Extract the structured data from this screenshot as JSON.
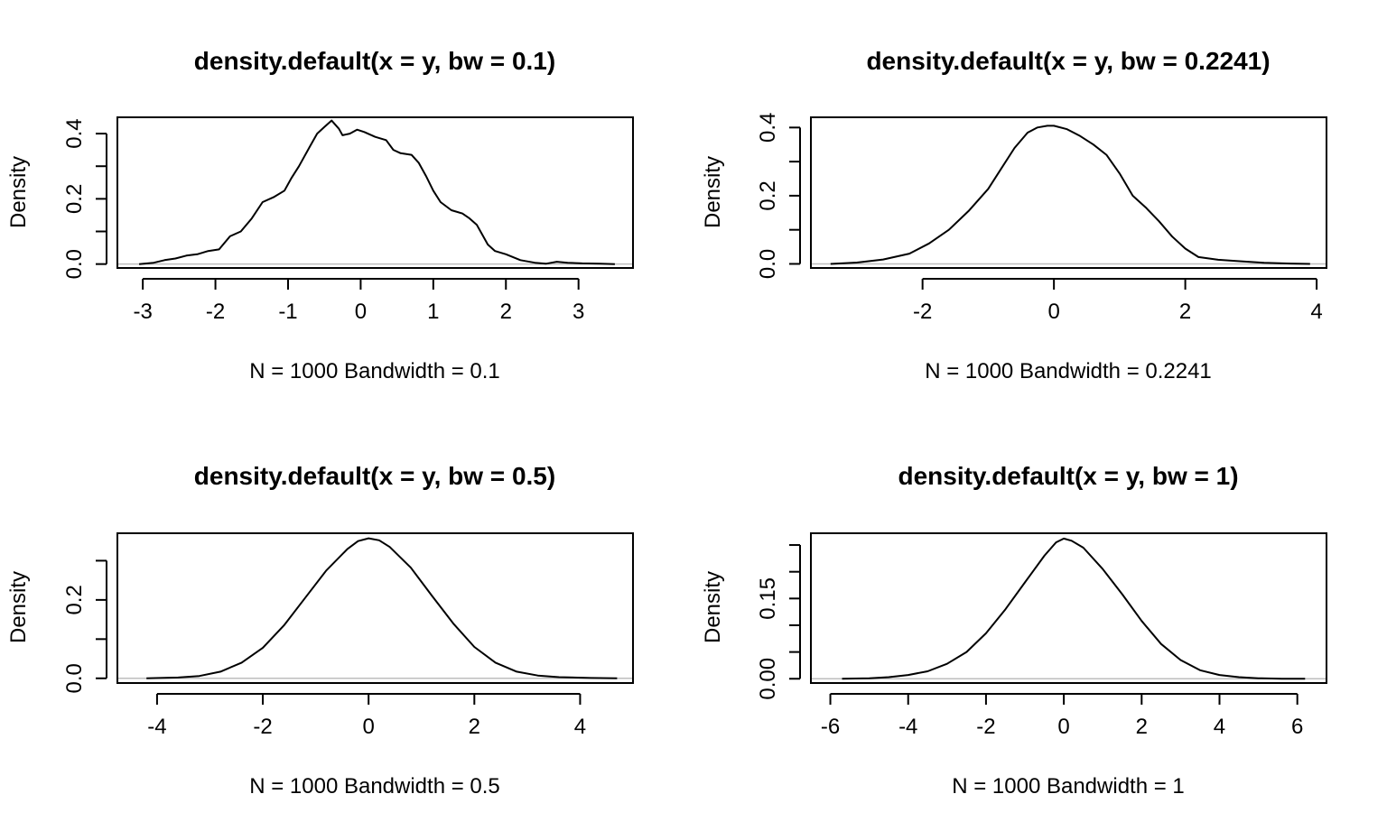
{
  "chart_data": [
    {
      "type": "line",
      "title": "density.default(x = y, bw = 0.1)",
      "xlabel": "N = 1000   Bandwidth = 0.1",
      "ylabel": "Density",
      "xlim": [
        -3.35,
        3.75
      ],
      "ylim": [
        -0.012,
        0.45
      ],
      "xticks": [
        -3,
        -2,
        -1,
        0,
        1,
        2,
        3
      ],
      "yticks": [
        0.0,
        0.2,
        0.4
      ],
      "yticks_minor": [
        0.1,
        0.3
      ],
      "ytick_labels": [
        "0.0",
        "0.2",
        "0.4"
      ],
      "x": [
        -3.05,
        -2.85,
        -2.7,
        -2.55,
        -2.4,
        -2.25,
        -2.1,
        -1.95,
        -1.8,
        -1.65,
        -1.5,
        -1.35,
        -1.2,
        -1.05,
        -0.95,
        -0.85,
        -0.7,
        -0.6,
        -0.5,
        -0.4,
        -0.3,
        -0.25,
        -0.15,
        -0.05,
        0.05,
        0.2,
        0.35,
        0.45,
        0.55,
        0.7,
        0.8,
        0.9,
        1.0,
        1.1,
        1.25,
        1.4,
        1.5,
        1.6,
        1.75,
        1.85,
        2.0,
        2.2,
        2.4,
        2.55,
        2.7,
        2.85,
        3.05,
        3.3,
        3.5
      ],
      "y": [
        0.0,
        0.004,
        0.012,
        0.017,
        0.026,
        0.03,
        0.04,
        0.045,
        0.085,
        0.1,
        0.14,
        0.19,
        0.205,
        0.225,
        0.265,
        0.3,
        0.36,
        0.4,
        0.42,
        0.44,
        0.415,
        0.395,
        0.4,
        0.412,
        0.405,
        0.39,
        0.38,
        0.35,
        0.34,
        0.335,
        0.31,
        0.27,
        0.225,
        0.19,
        0.165,
        0.155,
        0.14,
        0.12,
        0.06,
        0.04,
        0.03,
        0.012,
        0.004,
        0.001,
        0.007,
        0.004,
        0.002,
        0.001,
        0.0
      ]
    },
    {
      "type": "line",
      "title": "density.default(x = y, bw = 0.2241)",
      "xlabel": "N = 1000   Bandwidth = 0.2241",
      "ylabel": "Density",
      "xlim": [
        -3.7,
        4.15
      ],
      "ylim": [
        -0.012,
        0.43
      ],
      "xticks": [
        -2,
        0,
        2,
        4
      ],
      "yticks": [
        0.0,
        0.2,
        0.4
      ],
      "yticks_minor": [
        0.1,
        0.3
      ],
      "ytick_labels": [
        "0.0",
        "0.2",
        "0.4"
      ],
      "x": [
        -3.4,
        -3.0,
        -2.6,
        -2.2,
        -1.9,
        -1.6,
        -1.3,
        -1.0,
        -0.8,
        -0.6,
        -0.4,
        -0.25,
        -0.1,
        0.0,
        0.2,
        0.4,
        0.6,
        0.8,
        1.0,
        1.2,
        1.4,
        1.6,
        1.8,
        2.0,
        2.2,
        2.5,
        2.8,
        3.2,
        3.6,
        3.9
      ],
      "y": [
        0.0,
        0.004,
        0.013,
        0.03,
        0.06,
        0.1,
        0.155,
        0.22,
        0.28,
        0.34,
        0.385,
        0.4,
        0.405,
        0.405,
        0.395,
        0.375,
        0.35,
        0.32,
        0.265,
        0.2,
        0.165,
        0.125,
        0.08,
        0.045,
        0.02,
        0.012,
        0.008,
        0.003,
        0.001,
        0.0
      ]
    },
    {
      "type": "line",
      "title": "density.default(x = y, bw = 0.5)",
      "xlabel": "N = 1000   Bandwidth = 0.5",
      "ylabel": "Density",
      "xlim": [
        -4.75,
        5.0
      ],
      "ylim": [
        -0.012,
        0.37
      ],
      "xticks": [
        -4,
        -2,
        0,
        2,
        4
      ],
      "yticks": [
        0.0,
        0.2
      ],
      "yticks_minor": [
        0.1,
        0.3
      ],
      "ytick_labels": [
        "0.0",
        "0.2"
      ],
      "x": [
        -4.2,
        -3.6,
        -3.2,
        -2.8,
        -2.4,
        -2.0,
        -1.6,
        -1.2,
        -0.8,
        -0.4,
        -0.2,
        0.0,
        0.2,
        0.4,
        0.8,
        1.2,
        1.6,
        2.0,
        2.4,
        2.8,
        3.2,
        3.6,
        4.2,
        4.7
      ],
      "y": [
        0.0,
        0.002,
        0.006,
        0.017,
        0.04,
        0.078,
        0.135,
        0.205,
        0.275,
        0.33,
        0.35,
        0.357,
        0.352,
        0.335,
        0.282,
        0.21,
        0.14,
        0.08,
        0.04,
        0.017,
        0.007,
        0.003,
        0.001,
        0.0
      ]
    },
    {
      "type": "line",
      "title": "density.default(x = y, bw = 1)",
      "xlabel": "N = 1000   Bandwidth = 1",
      "ylabel": "Density",
      "xlim": [
        -6.5,
        6.75
      ],
      "ylim": [
        -0.008,
        0.272
      ],
      "xticks": [
        -6,
        -4,
        -2,
        0,
        2,
        4,
        6
      ],
      "yticks": [
        0.0,
        0.15
      ],
      "yticks_minor": [
        0.05,
        0.1,
        0.2,
        0.25
      ],
      "ytick_labels": [
        "0.00",
        "0.15"
      ],
      "x": [
        -5.7,
        -5.0,
        -4.5,
        -4.0,
        -3.5,
        -3.0,
        -2.5,
        -2.0,
        -1.5,
        -1.0,
        -0.5,
        -0.2,
        0.0,
        0.2,
        0.5,
        1.0,
        1.5,
        2.0,
        2.5,
        3.0,
        3.5,
        4.0,
        4.5,
        5.0,
        5.6,
        6.2
      ],
      "y": [
        0.0,
        0.001,
        0.003,
        0.007,
        0.014,
        0.028,
        0.05,
        0.085,
        0.13,
        0.18,
        0.23,
        0.255,
        0.262,
        0.258,
        0.245,
        0.205,
        0.158,
        0.108,
        0.065,
        0.035,
        0.016,
        0.007,
        0.003,
        0.001,
        0.0,
        0.0
      ]
    }
  ]
}
